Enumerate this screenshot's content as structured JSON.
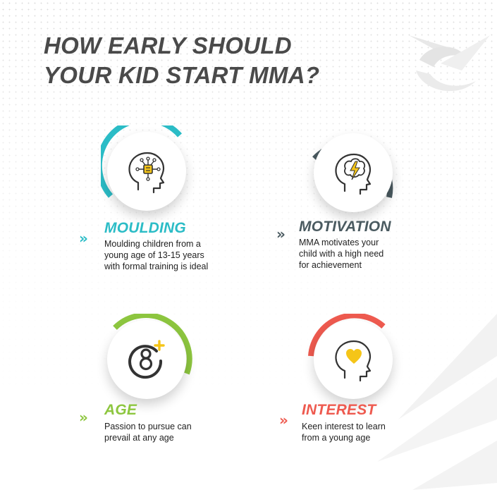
{
  "title": {
    "line1": "HOW EARLY SHOULD",
    "line2": "YOUR KID START MMA?"
  },
  "colors": {
    "moulding": "#2bbcc6",
    "motivation": "#4a5a60",
    "age": "#8dc63f",
    "interest": "#ee5a4f",
    "icon_stroke": "#333333",
    "icon_accent": "#f5c518"
  },
  "cards": [
    {
      "id": "moulding",
      "heading": "MOULDING",
      "description": "Moulding children from a\nyoung age of 13-15 years\nwith formal training is ideal",
      "icon": "brain-circuit-head-icon"
    },
    {
      "id": "motivation",
      "heading": "MOTIVATION",
      "description": "MMA motivates your\nchild with a high need\nfor achievement",
      "icon": "lightning-brain-head-icon"
    },
    {
      "id": "age",
      "heading": "AGE",
      "description": "Passion to pursue can\nprevail at any age",
      "icon": "eight-plus-icon"
    },
    {
      "id": "interest",
      "heading": "INTEREST",
      "description": "Keen interest to learn\nfrom a young age",
      "icon": "heart-head-icon"
    }
  ]
}
